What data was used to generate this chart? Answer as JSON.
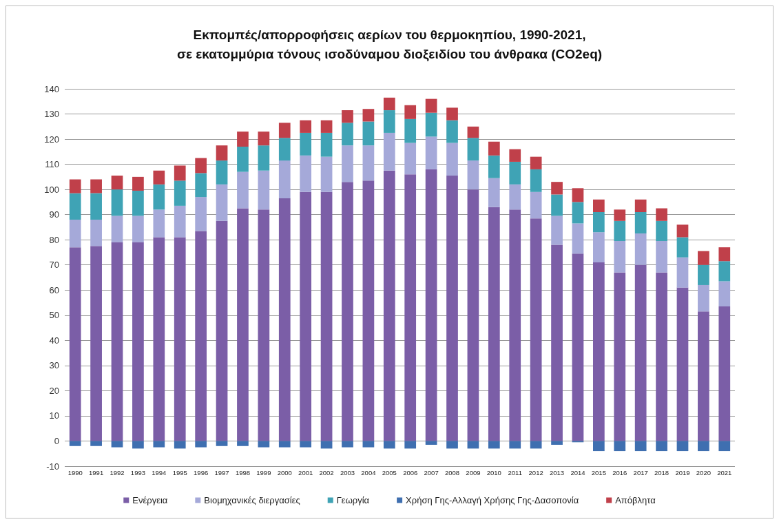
{
  "chart_data": {
    "type": "bar",
    "title": "Εκπομπές/απορροφήσεις αερίων του θερμοκηπίου, 1990-2021,\nσε εκατομμύρια τόνους ισοδύναμου διοξειδίου του άνθρακα (CO2eq)",
    "categories": [
      "1990",
      "1991",
      "1992",
      "1993",
      "1994",
      "1995",
      "1996",
      "1997",
      "1998",
      "1999",
      "2000",
      "2001",
      "2002",
      "2003",
      "2004",
      "2005",
      "2006",
      "2007",
      "2008",
      "2009",
      "2010",
      "2011",
      "2012",
      "2013",
      "2014",
      "2015",
      "2016",
      "2017",
      "2018",
      "2019",
      "2020",
      "2021"
    ],
    "stacked": true,
    "ylim": [
      -10,
      140
    ],
    "yticks": [
      -10,
      0,
      10,
      20,
      30,
      40,
      50,
      60,
      70,
      80,
      90,
      100,
      110,
      120,
      130,
      140
    ],
    "grid": "y",
    "legend": "bottom",
    "series": [
      {
        "name": "Ενέργεια",
        "color": "#7b5ea7",
        "values": [
          77,
          77.5,
          79,
          79,
          81,
          81,
          83.5,
          87.5,
          92.5,
          92,
          96.5,
          99,
          99,
          103,
          103.5,
          107.5,
          106,
          108,
          105.5,
          100,
          93,
          92,
          88.5,
          78,
          74.5,
          71,
          67,
          70,
          67,
          61,
          51.5,
          53.5
        ]
      },
      {
        "name": "Βιομηχανικές διεργασίες",
        "color": "#a5a9d9",
        "values": [
          11,
          10.5,
          10.5,
          10.5,
          11,
          12.5,
          13.5,
          14.5,
          14.5,
          15.5,
          15,
          14.5,
          14,
          14.5,
          14,
          15,
          12.5,
          13,
          13,
          11.5,
          11.5,
          10,
          10.5,
          11.5,
          12,
          12,
          12.5,
          12.5,
          12.5,
          12,
          10.5,
          10
        ]
      },
      {
        "name": "Γεωργία",
        "color": "#3fa3b5",
        "values": [
          10.5,
          10.5,
          10.5,
          10,
          10,
          10,
          9.5,
          9.5,
          10,
          10,
          9,
          9,
          9.5,
          9,
          9.5,
          9,
          9.5,
          9.5,
          9,
          9,
          9,
          9,
          9,
          8.5,
          8.5,
          8,
          8,
          8.5,
          8,
          8,
          8,
          8
        ]
      },
      {
        "name": "Χρήση Γης-Αλλαγή Χρήσης Γης-Δασοπονία",
        "color": "#3f6fb0",
        "values": [
          -2,
          -2,
          -2.5,
          -3,
          -2.5,
          -3,
          -2.5,
          -2,
          -2,
          -2.5,
          -2.5,
          -2.5,
          -3,
          -2.5,
          -2.5,
          -3,
          -3,
          -1.5,
          -3,
          -3,
          -3,
          -3,
          -3,
          -1.5,
          -0.5,
          -4,
          -4,
          -4,
          -4,
          -4,
          -4,
          -4
        ]
      },
      {
        "name": "Απόβλητα",
        "color": "#c0404a",
        "values": [
          5.5,
          5.5,
          5.5,
          5.5,
          5.5,
          6,
          6,
          6,
          6,
          5.5,
          6,
          5,
          5,
          5,
          5,
          5,
          5.5,
          5.5,
          5,
          4.5,
          5.5,
          5,
          5,
          5,
          5.5,
          5,
          4.5,
          5,
          5,
          5,
          5.5,
          5.5
        ]
      }
    ]
  }
}
